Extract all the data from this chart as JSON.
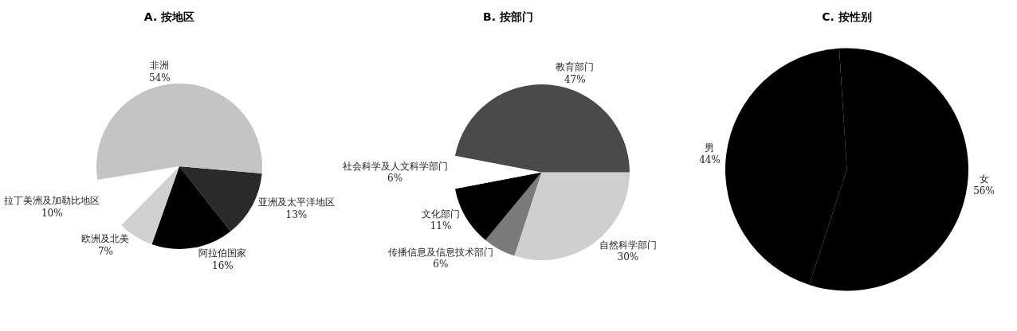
{
  "chart_data": [
    {
      "type": "pie",
      "title": "A. 按地区",
      "categories": [
        "亚洲及太平洋地区",
        "阿拉伯国家",
        "欧洲及北美",
        "拉丁美洲及加勒比地区",
        "非洲"
      ],
      "values": [
        13,
        16,
        7,
        10,
        54
      ],
      "value_labels": [
        "13%",
        "16%",
        "7%",
        "10%",
        "54%"
      ],
      "colors": [
        "#2a2a2a",
        "#000000",
        "#d0d0d0",
        "#ffffff",
        "#c4c4c4"
      ],
      "legend": false
    },
    {
      "type": "pie",
      "title": "B. 按部门",
      "categories": [
        "自然科学部门",
        "传播信息及信息技术部门",
        "文化部门",
        "社会科学及人文科学部门",
        "教育部门"
      ],
      "values": [
        30,
        6,
        11,
        6,
        47
      ],
      "value_labels": [
        "30%",
        "6%",
        "11%",
        "6%",
        "47%"
      ],
      "colors": [
        "#cfcfcf",
        "#7a7a7a",
        "#000000",
        "#ffffff",
        "#4a4a4a"
      ],
      "legend": false
    },
    {
      "type": "pie",
      "title": "C. 按性别",
      "categories": [
        "男",
        "女"
      ],
      "values": [
        44,
        56
      ],
      "value_labels": [
        "44%",
        "56%"
      ],
      "colors": [
        "#000000",
        "#000000"
      ],
      "legend": false
    }
  ]
}
